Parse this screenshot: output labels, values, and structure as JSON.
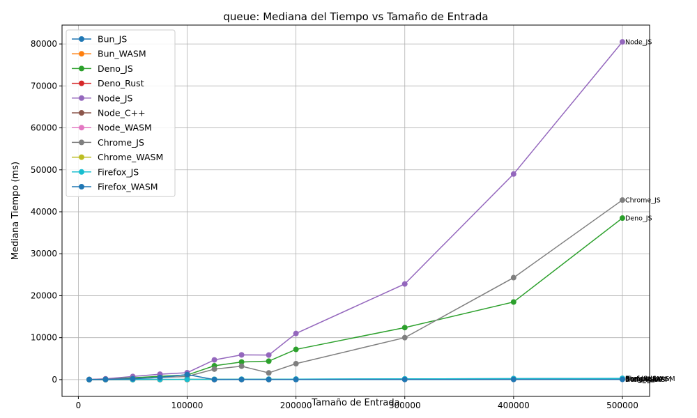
{
  "chart_data": {
    "type": "line",
    "title": "queue: Mediana del Tiempo vs Tamaño de Entrada",
    "xlabel": "Tamaño de Entrada",
    "ylabel": "Mediana Tiempo (ms)",
    "xlim": [
      -15000,
      525000
    ],
    "ylim": [
      -4000,
      84500
    ],
    "x_ticks": [
      0,
      100000,
      200000,
      300000,
      400000,
      500000
    ],
    "x_tick_labels": [
      "0",
      "100000",
      "200000",
      "300000",
      "400000",
      "500000"
    ],
    "y_ticks": [
      0,
      10000,
      20000,
      30000,
      40000,
      50000,
      60000,
      70000,
      80000
    ],
    "y_tick_labels": [
      "0",
      "10000",
      "20000",
      "30000",
      "40000",
      "50000",
      "60000",
      "70000",
      "80000"
    ],
    "grid": true,
    "legend_position": "top-left",
    "x": [
      10000,
      25000,
      50000,
      75000,
      100000,
      125000,
      150000,
      175000,
      200000,
      300000,
      400000,
      500000
    ],
    "series": [
      {
        "name": "Bun_JS",
        "color": "#1f77b4",
        "values": [
          5,
          12,
          25,
          40,
          60,
          75,
          90,
          105,
          120,
          180,
          240,
          300
        ]
      },
      {
        "name": "Bun_WASM",
        "color": "#ff7f0e",
        "values": [
          3,
          6,
          12,
          18,
          25,
          30,
          36,
          42,
          48,
          72,
          96,
          120
        ]
      },
      {
        "name": "Deno_JS",
        "color": "#2ca02c",
        "values": [
          30,
          120,
          450,
          800,
          1100,
          3300,
          4200,
          4400,
          7200,
          12400,
          18500,
          38500
        ]
      },
      {
        "name": "Deno_Rust",
        "color": "#d62728",
        "values": [
          2,
          5,
          10,
          15,
          20,
          25,
          30,
          35,
          40,
          60,
          80,
          100
        ]
      },
      {
        "name": "Node_JS",
        "color": "#9467bd",
        "values": [
          50,
          200,
          750,
          1300,
          1650,
          4700,
          5900,
          5850,
          11000,
          22800,
          49000,
          80500
        ]
      },
      {
        "name": "Node_C++",
        "color": "#8c564b",
        "values": [
          3,
          7,
          14,
          21,
          28,
          35,
          42,
          49,
          56,
          84,
          112,
          140
        ]
      },
      {
        "name": "Node_WASM",
        "color": "#e377c2",
        "values": [
          4,
          9,
          18,
          27,
          36,
          45,
          54,
          63,
          72,
          108,
          144,
          180
        ]
      },
      {
        "name": "Chrome_JS",
        "color": "#7f7f7f",
        "values": [
          20,
          80,
          250,
          500,
          750,
          2500,
          3200,
          1600,
          3800,
          10000,
          24300,
          42800
        ]
      },
      {
        "name": "Chrome_WASM",
        "color": "#bcbd22",
        "values": [
          5,
          10,
          20,
          30,
          40,
          50,
          60,
          70,
          80,
          120,
          160,
          200
        ]
      },
      {
        "name": "Firefox_JS",
        "color": "#17becf",
        "values": [
          6,
          14,
          28,
          42,
          56,
          70,
          84,
          98,
          112,
          168,
          224,
          280
        ]
      },
      {
        "name": "Firefox_WASM",
        "color": "#1f77b4",
        "values": [
          10,
          50,
          200,
          500,
          1200,
          15,
          18,
          20,
          22,
          30,
          40,
          50
        ]
      }
    ],
    "end_labels": [
      "Node_JS",
      "Chrome_JS",
      "Deno_JS",
      "Bun_JS",
      "Bun_WASM",
      "Deno_Rust",
      "Node_C++",
      "Node_WASM",
      "Chrome_WASM",
      "Firefox_JS",
      "Firefox_WASM"
    ]
  }
}
